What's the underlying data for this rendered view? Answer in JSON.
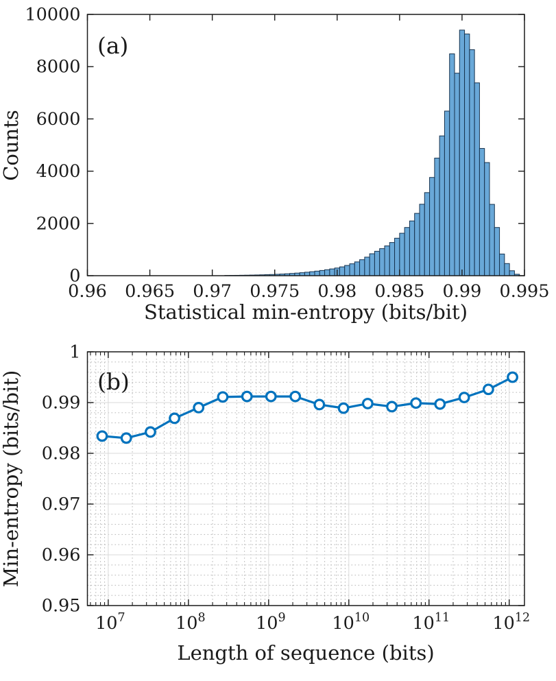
{
  "figure": {
    "background": "#ffffff"
  },
  "chart_data": [
    {
      "id": "panel-a",
      "type": "bar",
      "panel_label": "(a)",
      "xlabel": "Statistical min-entropy (bits/bit)",
      "ylabel": "Counts",
      "xlim": [
        0.96,
        0.995
      ],
      "ylim": [
        0,
        10000
      ],
      "grid": false,
      "x_ticks": [
        {
          "v": 0.96,
          "label": "0.96"
        },
        {
          "v": 0.965,
          "label": "0.965"
        },
        {
          "v": 0.97,
          "label": "0.97"
        },
        {
          "v": 0.975,
          "label": "0.975"
        },
        {
          "v": 0.98,
          "label": "0.98"
        },
        {
          "v": 0.985,
          "label": "0.985"
        },
        {
          "v": 0.99,
          "label": "0.99"
        },
        {
          "v": 0.995,
          "label": "0.995"
        }
      ],
      "y_ticks": [
        {
          "v": 0,
          "label": "0"
        },
        {
          "v": 2000,
          "label": "2000"
        },
        {
          "v": 4000,
          "label": "4000"
        },
        {
          "v": 6000,
          "label": "6000"
        },
        {
          "v": 8000,
          "label": "8000"
        },
        {
          "v": 10000,
          "label": "10000"
        }
      ],
      "bin_first_center": 0.9712,
      "bin_width": 0.0004,
      "counts": [
        10,
        12,
        14,
        17,
        20,
        24,
        28,
        33,
        39,
        46,
        54,
        63,
        74,
        86,
        100,
        115,
        133,
        153,
        175,
        200,
        228,
        259,
        294,
        338,
        392,
        455,
        528,
        612,
        710,
        840,
        935,
        1035,
        1140,
        1270,
        1435,
        1625,
        1845,
        2095,
        2385,
        2735,
        3180,
        3760,
        4500,
        5350,
        6300,
        8490,
        7750,
        9400,
        9250,
        8650,
        7380,
        4870,
        4330,
        2730,
        1845,
        830,
        465,
        190,
        55
      ],
      "bar_fill": "#69a8d8",
      "bar_edge": "#16324e"
    },
    {
      "id": "panel-b",
      "type": "line",
      "panel_label": "(b)",
      "xlabel": "Length of sequence (bits)",
      "ylabel": "Min-entropy (bits/bit)",
      "xscale": "log",
      "xlim": [
        5500000,
        1550000000000
      ],
      "ylim": [
        0.95,
        1.0
      ],
      "grid": true,
      "x_ticks": [
        {
          "e": 7,
          "base": "10",
          "sup": "7"
        },
        {
          "e": 8,
          "base": "10",
          "sup": "8"
        },
        {
          "e": 9,
          "base": "10",
          "sup": "9"
        },
        {
          "e": 10,
          "base": "10",
          "sup": "10"
        },
        {
          "e": 11,
          "base": "10",
          "sup": "11"
        },
        {
          "e": 12,
          "base": "10",
          "sup": "12"
        }
      ],
      "y_ticks": [
        {
          "v": 0.95,
          "label": "0.95"
        },
        {
          "v": 0.96,
          "label": "0.96"
        },
        {
          "v": 0.97,
          "label": "0.97"
        },
        {
          "v": 0.98,
          "label": "0.98"
        },
        {
          "v": 0.99,
          "label": "0.99"
        },
        {
          "v": 1.0,
          "label": "1"
        }
      ],
      "x": [
        8390000,
        16800000,
        33600000,
        67100000,
        134000000,
        268000000,
        537000000,
        1070000000,
        2150000000,
        4290000000,
        8590000000,
        17200000000,
        34400000000,
        68700000000,
        137000000000,
        275000000000,
        550000000000,
        1100000000000
      ],
      "y": [
        0.9834,
        0.983,
        0.9842,
        0.9869,
        0.989,
        0.9911,
        0.9912,
        0.9912,
        0.9912,
        0.9896,
        0.9889,
        0.9898,
        0.9892,
        0.9899,
        0.9897,
        0.991,
        0.9926,
        0.995
      ],
      "line_color": "#0072bd",
      "marker": "circle-open",
      "marker_fill": "#ffffff",
      "grid_color": "#d9d9d9",
      "minor_grid_color": "#bdbdbd",
      "y_minor_step": 0.002
    }
  ]
}
